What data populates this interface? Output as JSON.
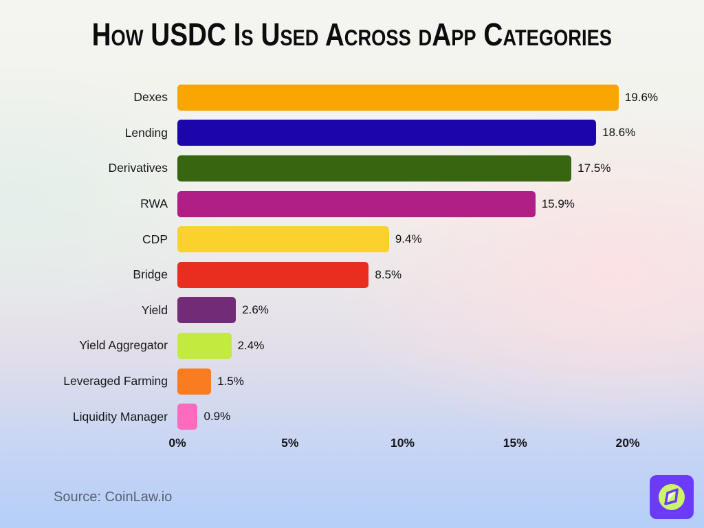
{
  "title": "How USDC Is Used Across dApp Categories",
  "source_text": "Source: CoinLaw.io",
  "logo": {
    "background_color": "#6c3bfa",
    "circle_color": "#ccf56a",
    "needle_outline_color": "#6c3bfa",
    "needle_light_color": "#f5fbe8"
  },
  "chart_data": {
    "type": "bar",
    "orientation": "horizontal",
    "title": "How USDC Is Used Across dApp Categories",
    "xlabel": "",
    "ylabel": "",
    "xlim": [
      0,
      20
    ],
    "grid": false,
    "legend": false,
    "categories": [
      "Dexes",
      "Lending",
      "Derivatives",
      "RWA",
      "CDP",
      "Bridge",
      "Yield",
      "Yield Aggregator",
      "Leveraged Farming",
      "Liquidity Manager"
    ],
    "values": [
      19.6,
      18.6,
      17.5,
      15.9,
      9.4,
      8.5,
      2.6,
      2.4,
      1.5,
      0.9
    ],
    "value_labels": [
      "19.6%",
      "18.6%",
      "17.5%",
      "15.9%",
      "9.4%",
      "8.5%",
      "2.6%",
      "2.4%",
      "1.5%",
      "0.9%"
    ],
    "bar_colors": [
      "#f9a603",
      "#1c05ab",
      "#38650f",
      "#b01f86",
      "#fbd22d",
      "#e92e20",
      "#722b76",
      "#c3eb3f",
      "#f97c1e",
      "#fd6bbf"
    ],
    "x_ticks": [
      "0%",
      "5%",
      "10%",
      "15%",
      "20%"
    ],
    "x_tick_values": [
      0,
      5,
      10,
      15,
      20
    ]
  }
}
